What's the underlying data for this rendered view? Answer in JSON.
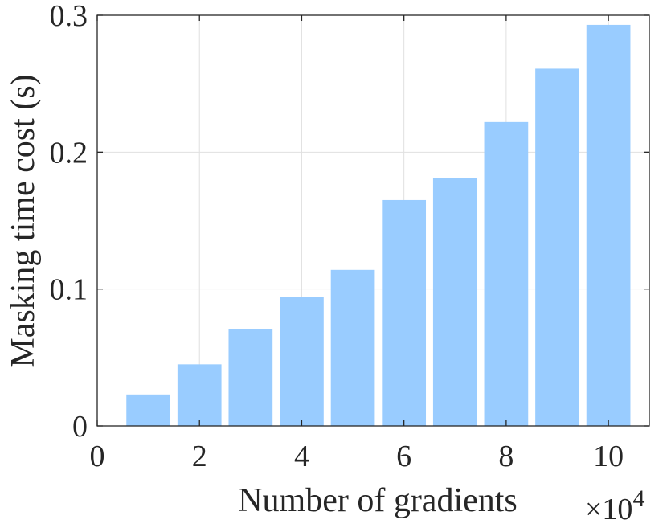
{
  "chart_data": {
    "type": "bar",
    "x": [
      1,
      2,
      3,
      4,
      5,
      6,
      7,
      8,
      9,
      10
    ],
    "values": [
      0.023,
      0.045,
      0.071,
      0.094,
      0.114,
      0.165,
      0.181,
      0.222,
      0.261,
      0.293
    ],
    "xlabel": "Number of gradients",
    "ylabel": "Masking time cost (s)",
    "x_multiplier": "×10",
    "x_multiplier_exponent": "4",
    "xlim": [
      0,
      10.8
    ],
    "ylim": [
      0,
      0.3
    ],
    "xticks": [
      0,
      2,
      4,
      6,
      8,
      10
    ],
    "xtick_labels": [
      "0",
      "2",
      "4",
      "6",
      "8",
      "10"
    ],
    "yticks": [
      0,
      0.1,
      0.2,
      0.3
    ],
    "ytick_labels": [
      "0",
      "0.1",
      "0.2",
      "0.3"
    ],
    "grid": true,
    "bar_color": "#99ccff",
    "axis_color": "#262626",
    "grid_color": "#e0e0e0"
  }
}
